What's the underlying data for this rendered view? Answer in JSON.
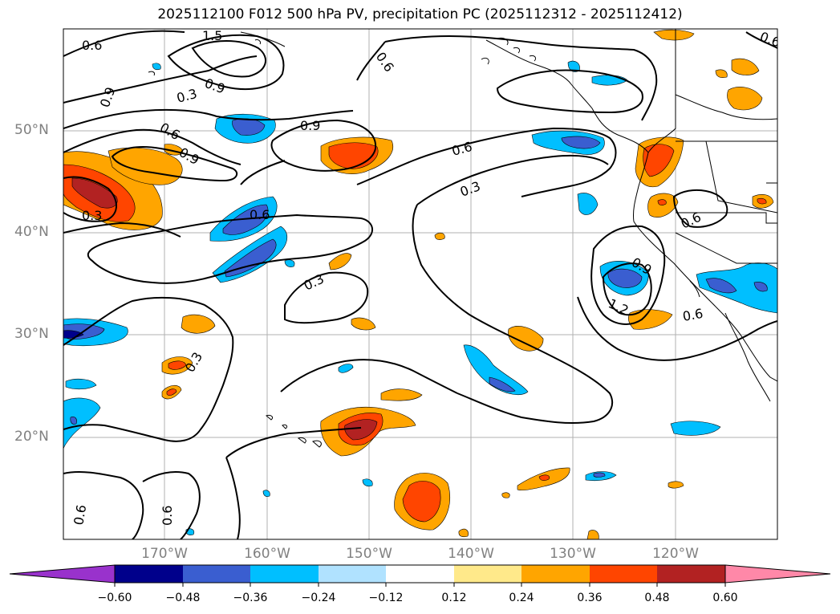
{
  "title": "2025112100 F012 500 hPa PV, precipitation PC (2025112312 - 2025112412)",
  "latitude_labels": [
    "50°N",
    "40°N",
    "30°N",
    "20°N"
  ],
  "longitude_labels": [
    "170°W",
    "160°W",
    "150°W",
    "140°W",
    "130°W",
    "120°W"
  ],
  "colorbar": {
    "tick_labels": [
      "−0.60",
      "−0.48",
      "−0.36",
      "−0.24",
      "−0.12",
      "0.12",
      "0.24",
      "0.36",
      "0.48",
      "0.60"
    ],
    "colors": [
      "#9932cc",
      "#00008b",
      "#3a5ed0",
      "#00bfff",
      "#b0e2ff",
      "#ffffff",
      "#ffe98a",
      "#ffa500",
      "#ff4500",
      "#b22222",
      "#ff88a8"
    ]
  },
  "contour_labels": [
    "1.5",
    "0.6",
    "0.9",
    "0.3",
    "0.6",
    "0.9",
    "0.6",
    "0.9",
    "0.9",
    "0.6",
    "0.3",
    "0.3",
    "0.6",
    "0.3",
    "0.3",
    "0.9",
    "1.2",
    "0.6",
    "0.6",
    "0.6",
    "0.6",
    "0.6"
  ]
}
